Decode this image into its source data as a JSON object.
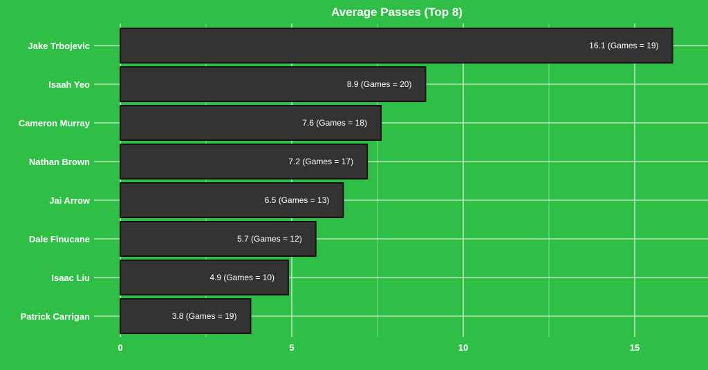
{
  "chart_data": {
    "type": "bar",
    "orientation": "horizontal",
    "title": "Average Passes (Top 8)",
    "xlabel": "",
    "ylabel": "",
    "xlim": [
      0,
      16.5
    ],
    "xticks": [
      0,
      5,
      10,
      15
    ],
    "grid": true,
    "legend": "none",
    "categories": [
      "Jake Trbojevic",
      "Isaah Yeo",
      "Cameron Murray",
      "Nathan Brown",
      "Jai Arrow",
      "Dale Finucane",
      "Isaac Liu",
      "Patrick Carrigan"
    ],
    "values": [
      16.1,
      8.9,
      7.6,
      7.2,
      6.5,
      5.7,
      4.9,
      3.8
    ],
    "games": [
      19,
      20,
      18,
      17,
      13,
      12,
      10,
      19
    ],
    "data_labels": [
      "16.1 (Games = 19)",
      "8.9 (Games = 20)",
      "7.6 (Games = 18)",
      "7.2 (Games = 17)",
      "6.5 (Games = 13)",
      "5.7 (Games = 12)",
      "4.9 (Games = 10)",
      "3.8 (Games = 19)"
    ],
    "colors": {
      "background": "#2fbf46",
      "bar_fill": "#333333",
      "bar_stroke": "#111111",
      "grid": "#ffffff",
      "text": "#ffffff"
    }
  }
}
